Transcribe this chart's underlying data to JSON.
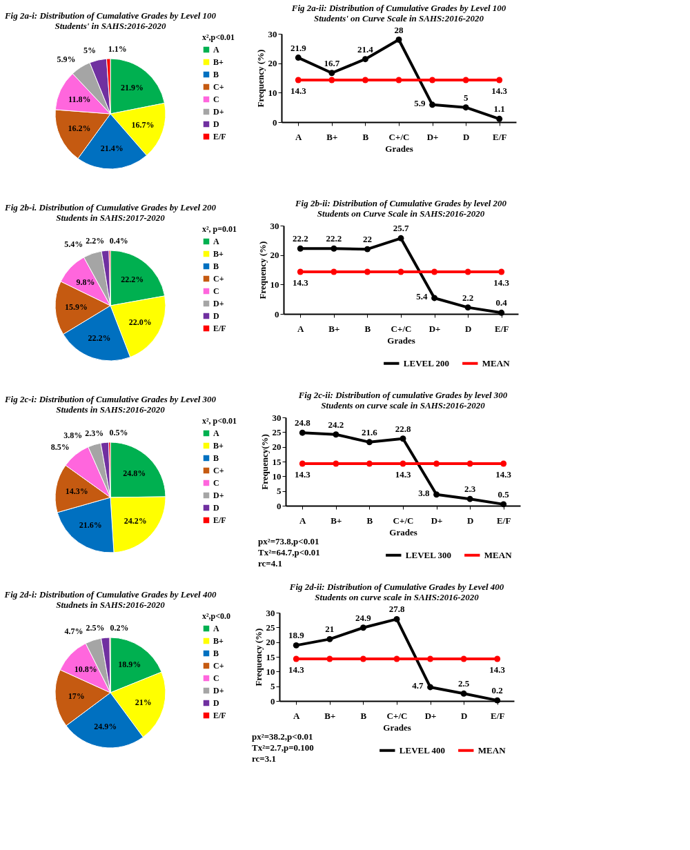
{
  "chart_data": [
    {
      "type": "pie",
      "title": "Fig 2a-i: Distribution of Cumalative Grades by  Level 100 Students' in SAHS:2016-2020",
      "legend_title": "x²,p<0.01",
      "legend": "right",
      "categories": [
        "A",
        "B+",
        "B",
        "C+",
        "C",
        "D+",
        "D",
        "E/F"
      ],
      "values": [
        21.9,
        16.7,
        21.4,
        16.2,
        11.8,
        5.9,
        5,
        1.1
      ],
      "value_labels": [
        "21.9%",
        "16.7%",
        "21.4%",
        "16.2%",
        "11.8%",
        "5.9%",
        "5%",
        "1.1%"
      ],
      "colors": [
        "#00b050",
        "#ffff00",
        "#0070c0",
        "#c55a11",
        "#ff66dd",
        "#a5a5a5",
        "#7030a0",
        "#ff0000"
      ]
    },
    {
      "type": "line",
      "title": "Fig 2a-ii: Distribution of Cumulative Grades by  Level 100 Students' on Curve Scale in SAHS:2016-2020",
      "xlabel": "Grades",
      "ylabel": "Frequency (%)",
      "categories": [
        "A",
        "B+",
        "B",
        "C+/C",
        "D+",
        "D",
        "E/F"
      ],
      "ylim": [
        0,
        30
      ],
      "yticks": [
        0,
        10,
        20,
        30
      ],
      "marker": "circle",
      "series": [
        {
          "color": "#000000",
          "values": [
            21.9,
            16.7,
            21.4,
            28,
            5.9,
            5,
            1.1
          ],
          "value_labels": [
            "21.9",
            "16.7",
            "21.4",
            "28",
            "5.9",
            "5",
            "1.1"
          ]
        },
        {
          "color": "#ff0000",
          "values": [
            14.3,
            14.3,
            14.3,
            14.3,
            14.3,
            14.3,
            14.3
          ],
          "value_labels": [
            "14.3",
            null,
            null,
            null,
            null,
            null,
            "14.3"
          ]
        }
      ]
    },
    {
      "type": "pie",
      "title": "Fig 2b-i. Distribution of  Cumulative Grades by Level 200 Students in SAHS:2017-2020",
      "legend_title": "x², p=0.01",
      "legend": "right",
      "categories": [
        "A",
        "B+",
        "B",
        "C+",
        "C",
        "D+",
        "D",
        "E/F"
      ],
      "values": [
        22.2,
        22.0,
        22.2,
        15.9,
        9.8,
        5.4,
        2.2,
        0.4
      ],
      "value_labels": [
        "22.2%",
        "22.0%",
        "22.2%",
        "15.9%",
        "9.8%",
        "5.4%",
        "2.2%",
        "0.4%"
      ],
      "colors": [
        "#00b050",
        "#ffff00",
        "#0070c0",
        "#c55a11",
        "#ff66dd",
        "#a5a5a5",
        "#7030a0",
        "#ff0000"
      ]
    },
    {
      "type": "line",
      "title": "Fig 2b-ii: Distribution of Cumulative Grades by  level 200 Students on Curve Scale in SAHS:2016-2020",
      "xlabel": "Grades",
      "ylabel": "Frequency (%)",
      "categories": [
        "A",
        "B+",
        "B",
        "C+/C",
        "D+",
        "D",
        "E/F"
      ],
      "ylim": [
        0,
        30
      ],
      "yticks": [
        0,
        10,
        20,
        30
      ],
      "marker": "circle",
      "legend": "bottom",
      "series": [
        {
          "name": "LEVEL 200",
          "color": "#000000",
          "values": [
            22.2,
            22.2,
            22,
            25.7,
            5.4,
            2.2,
            0.4
          ],
          "value_labels": [
            "22.2",
            "22.2",
            "22",
            "25.7",
            "5.4",
            "2.2",
            "0.4"
          ]
        },
        {
          "name": "MEAN",
          "color": "#ff0000",
          "values": [
            14.3,
            14.3,
            14.3,
            14.3,
            14.3,
            14.3,
            14.3
          ],
          "value_labels": [
            "14.3",
            null,
            null,
            null,
            null,
            null,
            "14.3"
          ]
        }
      ]
    },
    {
      "type": "pie",
      "title": "Fig 2c-i: Distribution of  Cumulative Grades by Level 300 Students in SAHS:2016-2020",
      "legend_title": "x², p<0.01",
      "legend": "right",
      "categories": [
        "A",
        "B+",
        "B",
        "C+",
        "C",
        "D+",
        "D",
        "E/F"
      ],
      "values": [
        24.8,
        24.2,
        21.6,
        14.3,
        8.5,
        3.8,
        2.3,
        0.5
      ],
      "value_labels": [
        "24.8%",
        "24.2%",
        "21.6%",
        "14.3%",
        "8.5%",
        "3.8%",
        "2.3%",
        "0.5%"
      ],
      "colors": [
        "#00b050",
        "#ffff00",
        "#0070c0",
        "#c55a11",
        "#ff66dd",
        "#a5a5a5",
        "#7030a0",
        "#ff0000"
      ]
    },
    {
      "type": "line",
      "title": "Fig 2c-ii: Distribution of  cumulative Grades by level 300 Students on curve scale in SAHS:2016-2020",
      "xlabel": "Grades",
      "ylabel": "Frequency(%)",
      "categories": [
        "A",
        "B+",
        "B",
        "C+/C",
        "D+",
        "D",
        "E/F"
      ],
      "ylim": [
        0,
        30
      ],
      "yticks": [
        0,
        5,
        10,
        15,
        20,
        25,
        30
      ],
      "marker": "circle",
      "legend": "bottom",
      "annotations": [
        "px²=73.8,p<0.01",
        "Tx²=64.7,p<0.01",
        "rc=4.1"
      ],
      "series": [
        {
          "name": "LEVEL 300",
          "color": "#000000",
          "values": [
            24.8,
            24.2,
            21.6,
            22.8,
            3.8,
            2.3,
            0.5
          ],
          "value_labels": [
            "24.8",
            "24.2",
            "21.6",
            "22.8",
            "3.8",
            "2.3",
            "0.5"
          ]
        },
        {
          "name": "MEAN",
          "color": "#ff0000",
          "values": [
            14.3,
            14.3,
            14.3,
            14.3,
            14.3,
            14.3,
            14.3
          ],
          "value_labels": [
            "14.3",
            null,
            null,
            "14.3",
            null,
            null,
            "14.3"
          ]
        }
      ]
    },
    {
      "type": "pie",
      "title": "Fig 2d-i: Distribution of Cumulative Grades by Level 400 Studnets in SAHS:2016-2020",
      "legend_title": "x²,p<0.0",
      "legend": "right",
      "categories": [
        "A",
        "B+",
        "B",
        "C+",
        "C",
        "D+",
        "D",
        "E/F"
      ],
      "values": [
        18.9,
        21,
        24.9,
        17,
        10.8,
        4.7,
        2.5,
        0.2
      ],
      "value_labels": [
        "18.9%",
        "21%",
        "24.9%",
        "17%",
        "10.8%",
        "4.7%",
        "2.5%",
        "0.2%"
      ],
      "colors": [
        "#00b050",
        "#ffff00",
        "#0070c0",
        "#c55a11",
        "#ff66dd",
        "#a5a5a5",
        "#7030a0",
        "#ff0000"
      ]
    },
    {
      "type": "line",
      "title": "Fig 2d-ii: Distribution of  Cumulative Grades by Level 400 Students on curve scale in SAHS:2016-2020",
      "xlabel": "Grades",
      "ylabel": "Frequency (%)",
      "categories": [
        "A",
        "B+",
        "B",
        "C+/C",
        "D+",
        "D",
        "E/F"
      ],
      "ylim": [
        0,
        30
      ],
      "yticks": [
        0,
        5,
        10,
        15,
        20,
        25,
        30
      ],
      "marker": "circle",
      "legend": "bottom",
      "annotations": [
        "px²=38.2,p<0.01",
        "Tx²=2.7,p=0.100",
        "rc=3.1"
      ],
      "series": [
        {
          "name": "LEVEL 400",
          "color": "#000000",
          "values": [
            18.9,
            21,
            24.9,
            27.8,
            4.7,
            2.5,
            0.2
          ],
          "value_labels": [
            "18.9",
            "21",
            "24.9",
            "27.8",
            "4.7",
            "2.5",
            "0.2"
          ]
        },
        {
          "name": "MEAN",
          "color": "#ff0000",
          "values": [
            14.3,
            14.3,
            14.3,
            14.3,
            14.3,
            14.3,
            14.3
          ],
          "value_labels": [
            "14.3",
            null,
            null,
            null,
            null,
            null,
            "14.3"
          ]
        }
      ]
    }
  ]
}
